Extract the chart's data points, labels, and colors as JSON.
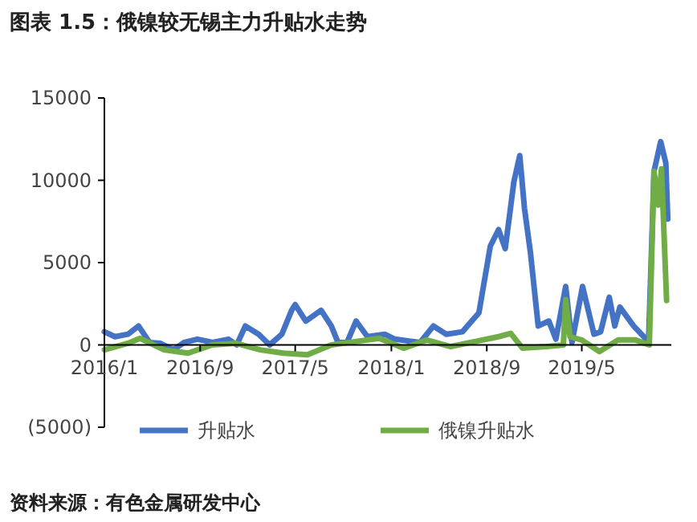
{
  "chart_data": {
    "type": "line",
    "title": "图表 1.5：俄镍较无锡主力升贴水走势",
    "annotations": [
      "资料来源：有色金属研发中心"
    ],
    "xlim": [
      "2016-01-01",
      "2019-12-15"
    ],
    "xticks": [
      {
        "value": "2016-01-01",
        "label": "2016/1"
      },
      {
        "value": "2016-09-01",
        "label": "2016/9"
      },
      {
        "value": "2017-05-01",
        "label": "2017/5"
      },
      {
        "value": "2018-01-01",
        "label": "2018/1"
      },
      {
        "value": "2018-09-01",
        "label": "2018/9"
      },
      {
        "value": "2019-05-01",
        "label": "2019/5"
      }
    ],
    "ylim": [
      -5000,
      15000
    ],
    "yticks": [
      {
        "value": -5000,
        "label": "(5000)"
      },
      0,
      5000,
      10000,
      15000
    ],
    "grid": false,
    "legend": "bottom",
    "line_style": "solid",
    "marker": "none",
    "series": [
      {
        "name": "升贴水",
        "color": "#4472c4",
        "x": [
          "2016-01-01",
          "2016-01-28",
          "2016-03-01",
          "2016-03-28",
          "2016-04-25",
          "2016-05-22",
          "2016-06-25",
          "2016-07-22",
          "2016-08-25",
          "2016-10-03",
          "2016-11-12",
          "2016-12-03",
          "2016-12-25",
          "2017-01-28",
          "2017-02-25",
          "2017-03-28",
          "2017-04-22",
          "2017-05-01",
          "2017-05-28",
          "2017-07-06",
          "2017-08-01",
          "2017-08-18",
          "2017-09-10",
          "2017-10-03",
          "2017-11-01",
          "2017-12-15",
          "2018-01-10",
          "2018-03-15",
          "2018-04-18",
          "2018-05-21",
          "2018-07-01",
          "2018-08-12",
          "2018-09-10",
          "2018-10-01",
          "2018-10-18",
          "2018-11-09",
          "2018-11-24",
          "2018-12-06",
          "2018-12-21",
          "2019-01-10",
          "2019-02-06",
          "2019-02-24",
          "2019-03-21",
          "2019-04-06",
          "2019-05-03",
          "2019-06-01",
          "2019-06-18",
          "2019-07-10",
          "2019-07-24",
          "2019-08-06",
          "2019-09-10",
          "2019-10-06",
          "2019-10-18",
          "2019-11-01",
          "2019-11-18",
          "2019-12-01",
          "2019-12-06"
        ],
        "values": [
          800,
          500,
          650,
          1150,
          150,
          100,
          -300,
          150,
          350,
          150,
          350,
          0,
          1150,
          650,
          0,
          650,
          2100,
          2450,
          1450,
          2100,
          1150,
          150,
          150,
          1450,
          500,
          650,
          350,
          150,
          1150,
          650,
          800,
          1950,
          6000,
          7000,
          5850,
          9900,
          11500,
          8300,
          5650,
          1150,
          1450,
          350,
          3550,
          150,
          3550,
          650,
          800,
          2900,
          1150,
          2300,
          1150,
          500,
          150,
          10550,
          12350,
          11050,
          7650
        ]
      },
      {
        "name": "俄镍升贴水",
        "color": "#70ad47",
        "x": [
          "2016-01-01",
          "2016-03-01",
          "2016-04-01",
          "2016-06-01",
          "2016-08-01",
          "2016-10-01",
          "2016-12-01",
          "2017-02-01",
          "2017-04-01",
          "2017-06-01",
          "2017-08-01",
          "2017-10-01",
          "2017-12-01",
          "2018-02-01",
          "2018-04-01",
          "2018-06-01",
          "2018-08-01",
          "2018-10-01",
          "2018-11-01",
          "2018-12-01",
          "2019-02-01",
          "2019-03-15",
          "2019-03-21",
          "2019-04-01",
          "2019-05-01",
          "2019-06-15",
          "2019-08-01",
          "2019-09-15",
          "2019-10-20",
          "2019-11-01",
          "2019-11-12",
          "2019-11-20",
          "2019-12-03"
        ],
        "values": [
          -300,
          100,
          400,
          -300,
          -500,
          0,
          100,
          -300,
          -500,
          -600,
          0,
          200,
          400,
          -200,
          300,
          -100,
          200,
          500,
          700,
          -200,
          -100,
          0,
          2750,
          500,
          300,
          -400,
          300,
          300,
          0,
          10550,
          8500,
          10700,
          2700
        ]
      }
    ]
  }
}
